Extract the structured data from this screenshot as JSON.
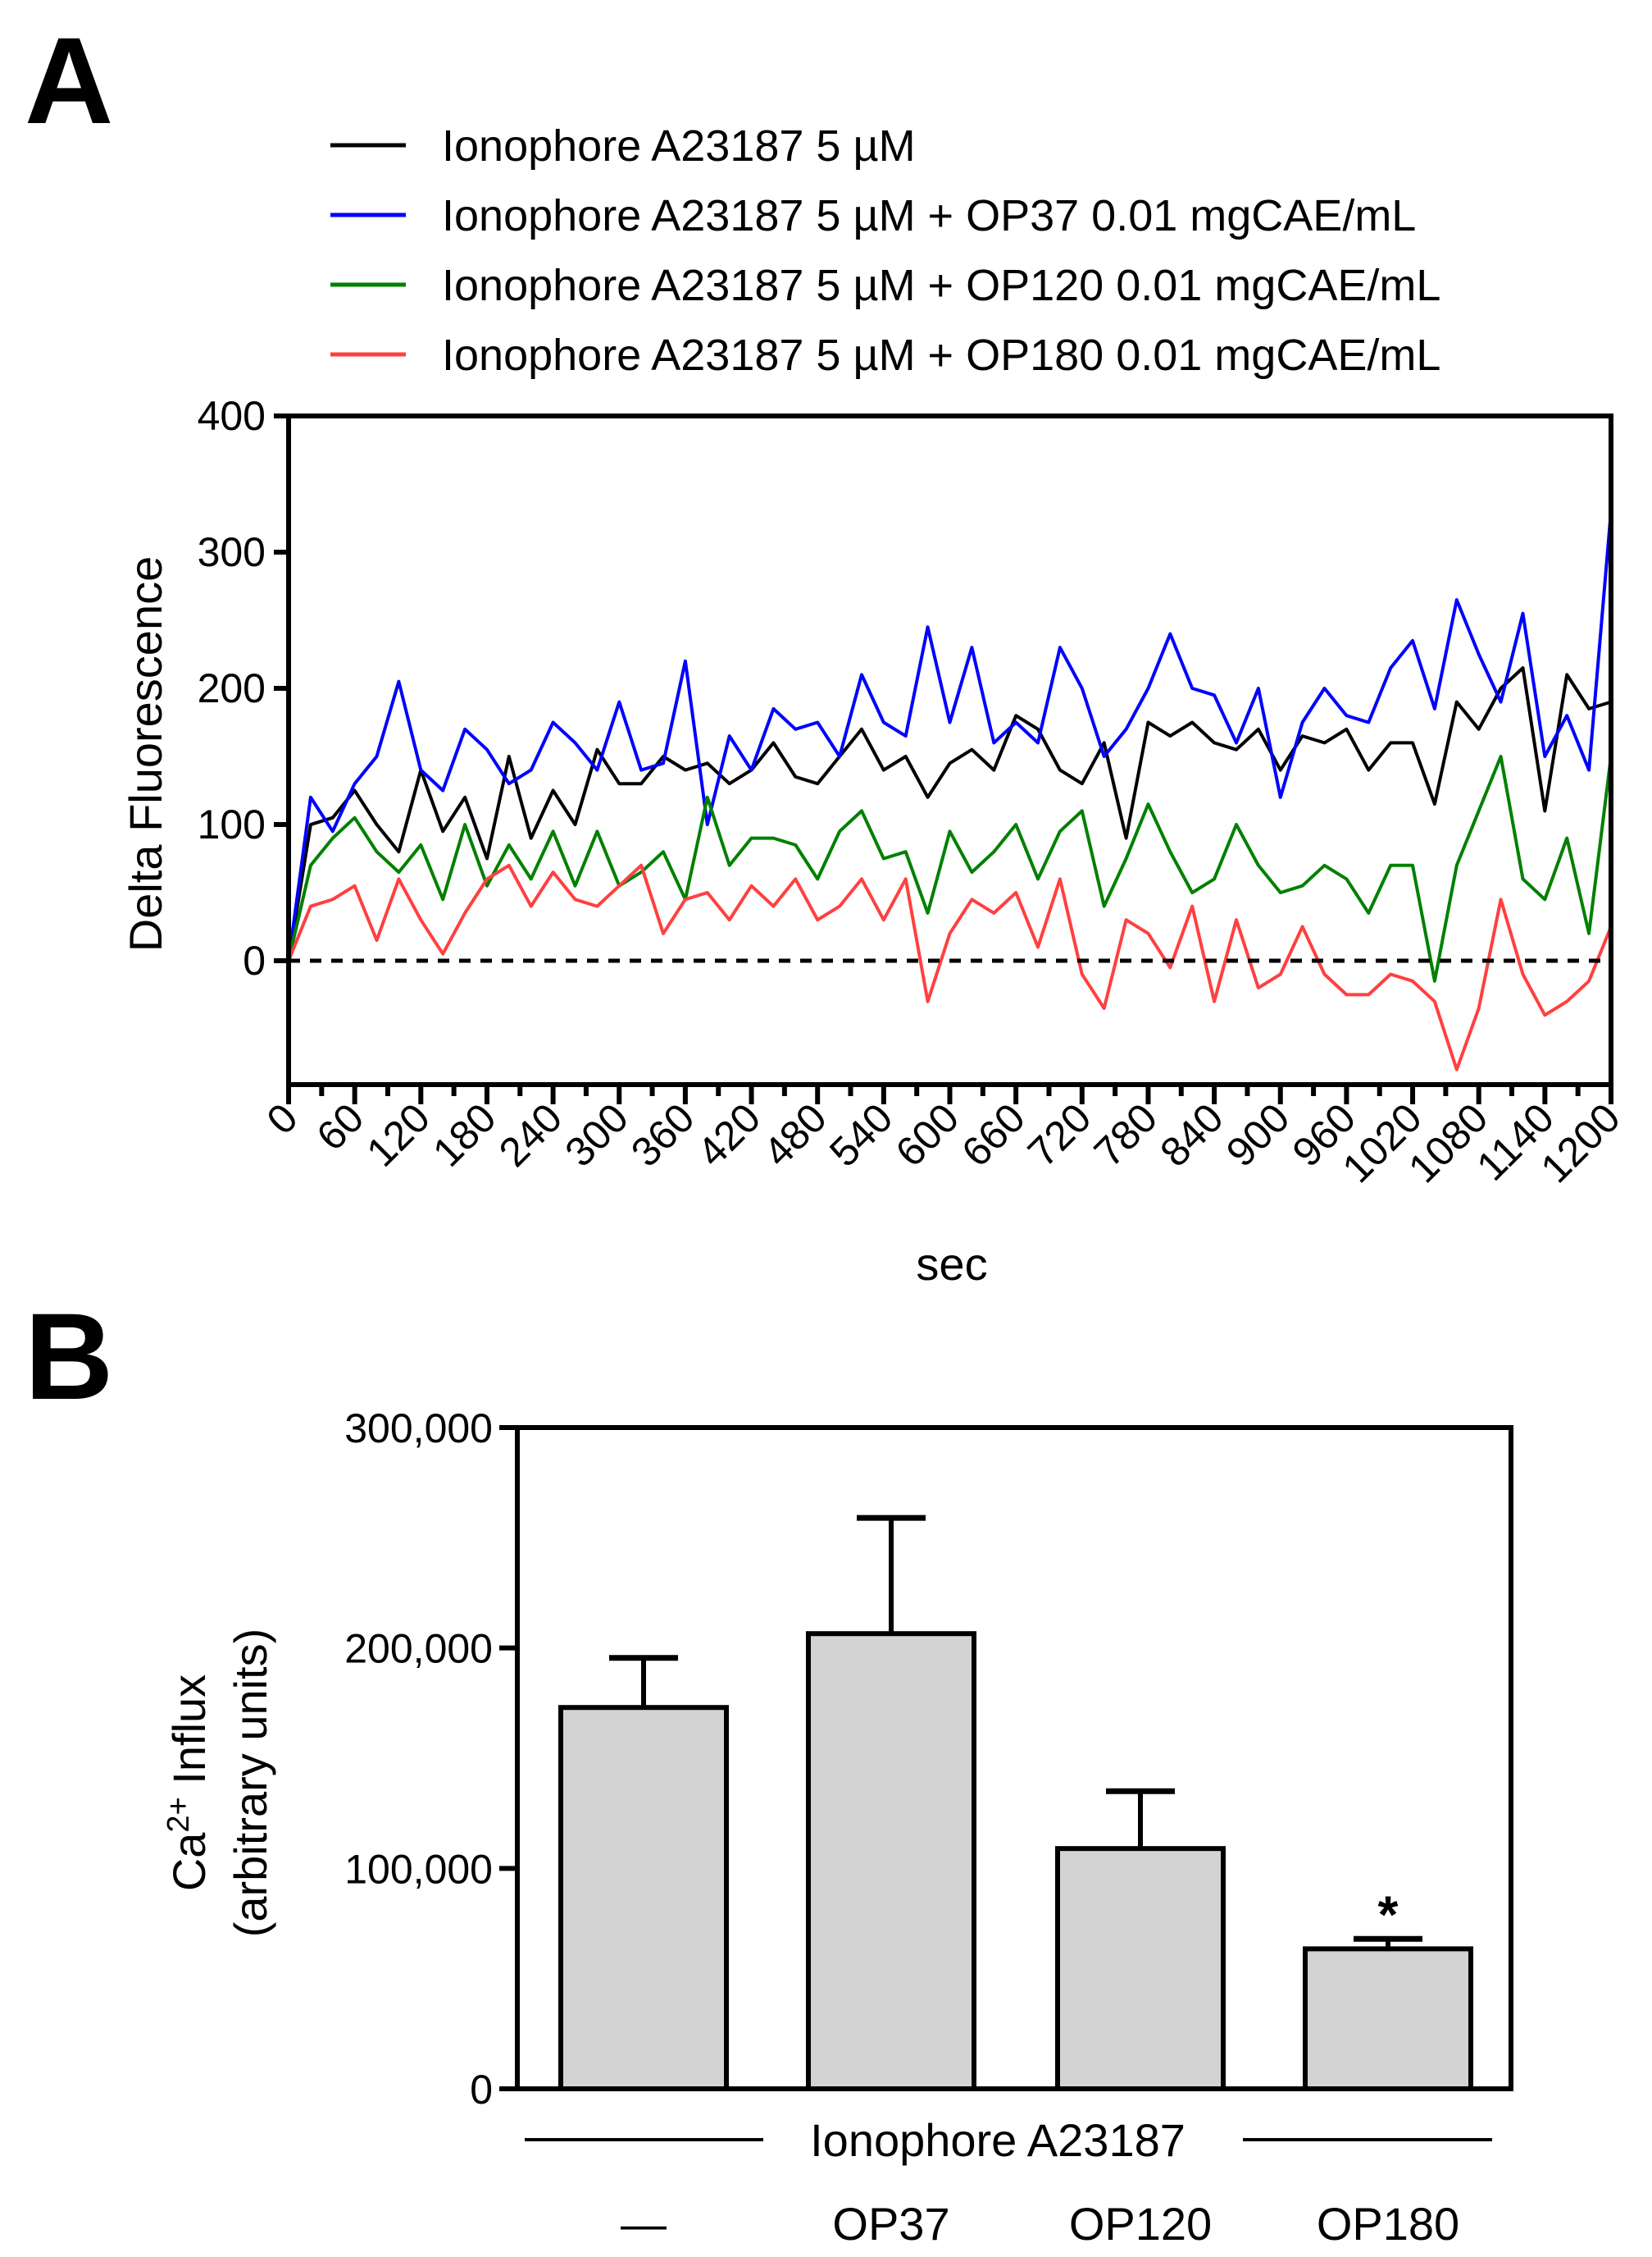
{
  "panels": {
    "a": "A",
    "b": "B"
  },
  "chart_data": [
    {
      "type": "line",
      "title": "",
      "xlabel": "sec",
      "ylabel": "Delta Fluorescence",
      "xlim": [
        0,
        1200
      ],
      "ylim": [
        -91,
        400
      ],
      "xticks": [
        "0",
        "60",
        "120",
        "180",
        "240",
        "300",
        "360",
        "420",
        "480",
        "540",
        "600",
        "660",
        "720",
        "780",
        "840",
        "900",
        "960",
        "1020",
        "1080",
        "1140",
        "1200"
      ],
      "yticks": [
        "0",
        "100",
        "200",
        "300",
        "400"
      ],
      "reference_line": {
        "y": 0,
        "style": "dashed"
      },
      "legend_position": "top",
      "x": [
        0,
        20,
        40,
        60,
        80,
        100,
        120,
        140,
        160,
        180,
        200,
        220,
        240,
        260,
        280,
        300,
        320,
        340,
        360,
        380,
        400,
        420,
        440,
        460,
        480,
        500,
        520,
        540,
        560,
        580,
        600,
        620,
        640,
        660,
        680,
        700,
        720,
        740,
        760,
        780,
        800,
        820,
        840,
        860,
        880,
        900,
        920,
        940,
        960,
        980,
        1000,
        1020,
        1040,
        1060,
        1080,
        1100,
        1120,
        1140,
        1160,
        1180,
        1200
      ],
      "series": [
        {
          "name": "Ionophore A23187 5 µM",
          "color": "#000000",
          "values": [
            0,
            100,
            105,
            125,
            100,
            80,
            140,
            95,
            120,
            75,
            150,
            90,
            125,
            100,
            155,
            130,
            130,
            150,
            140,
            145,
            130,
            140,
            160,
            135,
            130,
            150,
            170,
            140,
            150,
            120,
            145,
            155,
            140,
            180,
            170,
            140,
            130,
            160,
            90,
            175,
            165,
            175,
            160,
            155,
            170,
            140,
            165,
            160,
            170,
            140,
            160,
            160,
            115,
            190,
            170,
            200,
            215,
            110,
            210,
            185,
            190
          ]
        },
        {
          "name": "Ionophore A23187 5 µM + OP37 0.01 mgCAE/mL",
          "color": "#0000ff",
          "values": [
            0,
            120,
            95,
            130,
            150,
            205,
            140,
            125,
            170,
            155,
            130,
            140,
            175,
            160,
            140,
            190,
            140,
            145,
            220,
            100,
            165,
            140,
            185,
            170,
            175,
            150,
            210,
            175,
            165,
            245,
            175,
            230,
            160,
            175,
            160,
            230,
            200,
            150,
            170,
            200,
            240,
            200,
            195,
            160,
            200,
            120,
            175,
            200,
            180,
            175,
            215,
            235,
            185,
            265,
            225,
            190,
            255,
            150,
            180,
            140,
            330
          ]
        },
        {
          "name": "Ionophore A23187 5 µM + OP120 0.01 mgCAE/mL",
          "color": "#008000",
          "values": [
            0,
            70,
            90,
            105,
            80,
            65,
            85,
            45,
            100,
            55,
            85,
            60,
            95,
            55,
            95,
            55,
            65,
            80,
            45,
            120,
            70,
            90,
            90,
            85,
            60,
            95,
            110,
            75,
            80,
            35,
            95,
            65,
            80,
            100,
            60,
            95,
            110,
            40,
            75,
            115,
            80,
            50,
            60,
            100,
            70,
            50,
            55,
            70,
            60,
            35,
            70,
            70,
            -15,
            70,
            110,
            150,
            60,
            45,
            90,
            20,
            150
          ]
        },
        {
          "name": "Ionophore A23187 5 µM + OP180 0.01 mgCAE/mL",
          "color": "#ff4040",
          "values": [
            0,
            40,
            45,
            55,
            15,
            60,
            30,
            5,
            35,
            60,
            70,
            40,
            65,
            45,
            40,
            55,
            70,
            20,
            45,
            50,
            30,
            55,
            40,
            60,
            30,
            40,
            60,
            30,
            60,
            -30,
            20,
            45,
            35,
            50,
            10,
            60,
            -10,
            -35,
            30,
            20,
            -5,
            40,
            -30,
            30,
            -20,
            -10,
            25,
            -10,
            -25,
            -25,
            -10,
            -15,
            -30,
            -80,
            -35,
            45,
            -10,
            -40,
            -30,
            -15,
            25
          ]
        }
      ]
    },
    {
      "type": "bar",
      "ylabel_parts": [
        "Ca",
        "2+",
        " Influx"
      ],
      "ylabel_line2": "(arbitrary units)",
      "ylim": [
        0,
        300000
      ],
      "yticks": [
        "0",
        "100,000",
        "200,000",
        "300,000"
      ],
      "group_label": "Ionophore A23187",
      "categories": [
        "—",
        "OP37",
        "OP120",
        "OP180"
      ],
      "values": [
        173000,
        206500,
        109000,
        63500
      ],
      "errors": [
        22500,
        52500,
        26000,
        4500
      ],
      "annotations": [
        "",
        "",
        "",
        "*"
      ],
      "bar_color": "#d3d3d3"
    }
  ]
}
